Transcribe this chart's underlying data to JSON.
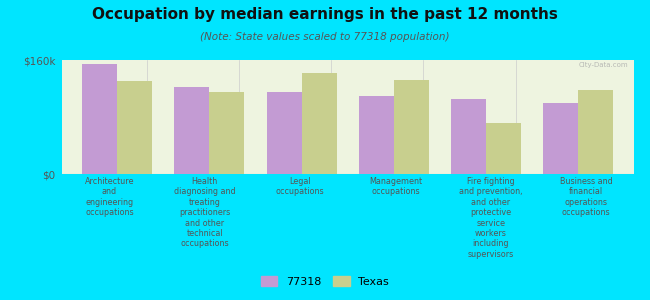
{
  "title": "Occupation by median earnings in the past 12 months",
  "subtitle": "(Note: State values scaled to 77318 population)",
  "background_color": "#00e5ff",
  "plot_bg_color": "#eef4e0",
  "categories": [
    "Architecture\nand\nengineering\noccupations",
    "Health\ndiagnosing and\ntreating\npractitioners\nand other\ntechnical\noccupations",
    "Legal\noccupations",
    "Management\noccupations",
    "Fire fighting\nand prevention,\nand other\nprotective\nservice\nworkers\nincluding\nsupervisors",
    "Business and\nfinancial\noperations\noccupations"
  ],
  "values_77318": [
    155000,
    122000,
    115000,
    110000,
    105000,
    100000
  ],
  "values_texas": [
    130000,
    115000,
    142000,
    132000,
    72000,
    118000
  ],
  "color_77318": "#c39bd3",
  "color_texas": "#c8cf8e",
  "ylim": [
    0,
    160000
  ],
  "ytick_labels": [
    "$0",
    "$160k"
  ],
  "legend_labels": [
    "77318",
    "Texas"
  ],
  "bar_width": 0.38,
  "watermark": "City-Data.com"
}
